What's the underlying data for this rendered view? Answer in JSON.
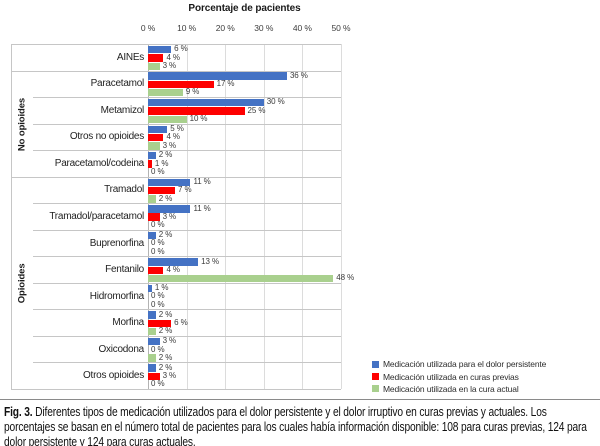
{
  "chart_data": {
    "type": "bar",
    "orientation": "horizontal",
    "title": "Porcentaje de pacientes",
    "xlabel": "Porcentaje de pacientes",
    "xlim": [
      0,
      50
    ],
    "x_tick_values": [
      0,
      10,
      20,
      30,
      40,
      50
    ],
    "x_tick_labels": [
      "0 %",
      "10 %",
      "20 %",
      "30 %",
      "40 %",
      "50 %"
    ],
    "gridlines": true,
    "legend_position": "bottom-right",
    "value_suffix": " %",
    "categories": [
      "AINEs",
      "Paracetamol",
      "Metamizol",
      "Otros no opioides",
      "Paracetamol/codeina",
      "Tramadol",
      "Tramadol/paracetamol",
      "Buprenorfina",
      "Fentanilo",
      "Hidromorfina",
      "Morfina",
      "Oxicodona",
      "Otros opioides"
    ],
    "row_groups": [
      {
        "label": "",
        "start": 0,
        "end": 0
      },
      {
        "label": "No opioides",
        "start": 1,
        "end": 4
      },
      {
        "label": "Opioides",
        "start": 5,
        "end": 12
      }
    ],
    "series": [
      {
        "name": "Medicación utilizada para el dolor persistente",
        "color": "#4472C4",
        "values": [
          6,
          36,
          30,
          5,
          2,
          11,
          11,
          2,
          13,
          1,
          2,
          3,
          2
        ]
      },
      {
        "name": "Medicación utilizada en curas previas",
        "color": "#FE0000",
        "values": [
          4,
          17,
          25,
          4,
          1,
          7,
          3,
          0,
          4,
          0,
          6,
          0,
          3
        ]
      },
      {
        "name": "Medicación utilizada en la cura actual",
        "color": "#A9D08E",
        "values": [
          3,
          9,
          10,
          3,
          0,
          2,
          0,
          0,
          48,
          0,
          2,
          2,
          0
        ]
      }
    ]
  },
  "caption": {
    "label": "Fig. 3.",
    "text": "Diferentes tipos de medicación utilizados para el dolor persistente y el dolor irruptivo en curas previas y actuales. Los porcentajes se basan en el número total de pacientes para los cuales había información disponible: 108 para curas previas, 124 para dolor persistente y 124 para curas actuales."
  }
}
